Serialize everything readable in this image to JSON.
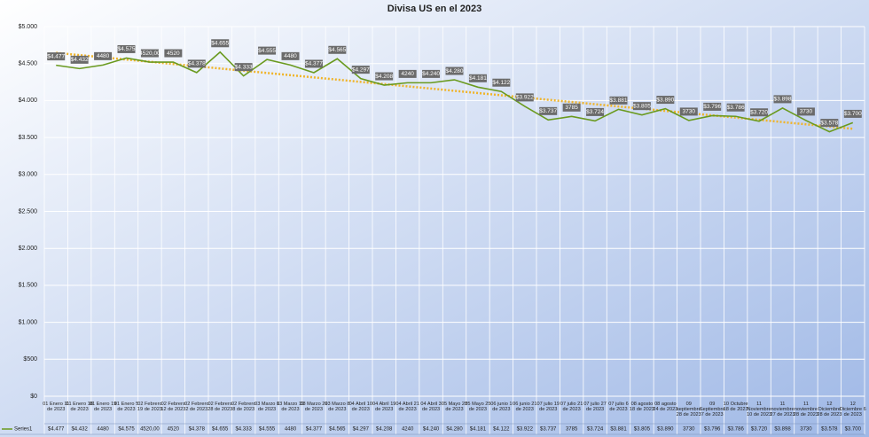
{
  "chart_data": {
    "type": "line",
    "title": "Divisa US en el 2023",
    "categories": [
      "01 Enero 11 de 2023",
      "01 Enero 18 de 2023",
      "01 Enero 19 de 2023",
      "01 Enero 5 de 2023",
      "02 Febrero 19 de 2023",
      "02 Febrero 12 de 2023",
      "02 Febrero 2 de 2023",
      "02 Febrero 28 de 2023",
      "02 Febrero 8 de 2023",
      "03 Marzo 1 de 2023",
      "03 Marzo 19 de 2023",
      "03 Marzo 29 de 2023",
      "03 Marzo 8 de 2023",
      "04 Abril 10 de 2023",
      "04 Abril 19 de 2023",
      "04 Abril 21 de 2023",
      "04 Abril 3 de 2023",
      "05 Mayo 23 de 2023",
      "05 Mayo 25 de 2023",
      "06 junio 1 de 2023",
      "06 junio 21 de 2023",
      "07 julio 19 de 2023",
      "07 julio 21 de 2023",
      "07 julio 27 de 2023",
      "07 julio 6 de 2023",
      "08 agosto 18 de 2023",
      "08 agosto 24 de 2023",
      "09 septiembre 28 de 2023",
      "09 Septiembre 7 de 2023",
      "10 Octubre 18 de 2023",
      "11 Noviembre 10 de 2023",
      "11 noviembre 27 de 2023",
      "11 noviembre 28 de 2023",
      "12 Diciembre 28 de 2023",
      "12 Diciembre 6 de 2023"
    ],
    "series": [
      {
        "name": "Series1",
        "color": "#6a9a1f",
        "values": [
          4477,
          4432,
          4480,
          4575,
          4520,
          4520,
          4378,
          4655,
          4333,
          4555,
          4480,
          4377,
          4565,
          4297,
          4208,
          4240,
          4240,
          4280,
          4181,
          4122,
          3922,
          3737,
          3785,
          3724,
          3881,
          3805,
          3890,
          3730,
          3796,
          3786,
          3720,
          3898,
          3730,
          3578,
          3700
        ],
        "value_labels": [
          "$4.477",
          "$4.432",
          "4480",
          "$4.575",
          "4520,00",
          "4520",
          "$4.378",
          "$4.655",
          "$4.333",
          "$4.555",
          "4480",
          "$4.377",
          "$4.565",
          "$4.297",
          "$4.208",
          "4240",
          "$4.240",
          "$4.280",
          "$4.181",
          "$4.122",
          "$3.922",
          "$3.737",
          "3785",
          "$3.724",
          "$3.881",
          "$3.805",
          "$3.890",
          "3730",
          "$3.796",
          "$3.786",
          "$3.720",
          "$3.898",
          "3730",
          "$3.578",
          "$3.700"
        ]
      }
    ],
    "ylim": [
      0,
      5000
    ],
    "yticks": [
      {
        "value": 0,
        "label": "$0"
      },
      {
        "value": 500,
        "label": "$500"
      },
      {
        "value": 1000,
        "label": "$1.000"
      },
      {
        "value": 1500,
        "label": "$1.500"
      },
      {
        "value": 2000,
        "label": "$2.000"
      },
      {
        "value": 2500,
        "label": "$2.500"
      },
      {
        "value": 3000,
        "label": "$3.000"
      },
      {
        "value": 3500,
        "label": "$3.500"
      },
      {
        "value": 4000,
        "label": "$4.000"
      },
      {
        "value": 4500,
        "label": "$4.500"
      },
      {
        "value": 5000,
        "label": "$5.000"
      }
    ],
    "grid": true,
    "trendline": true
  }
}
